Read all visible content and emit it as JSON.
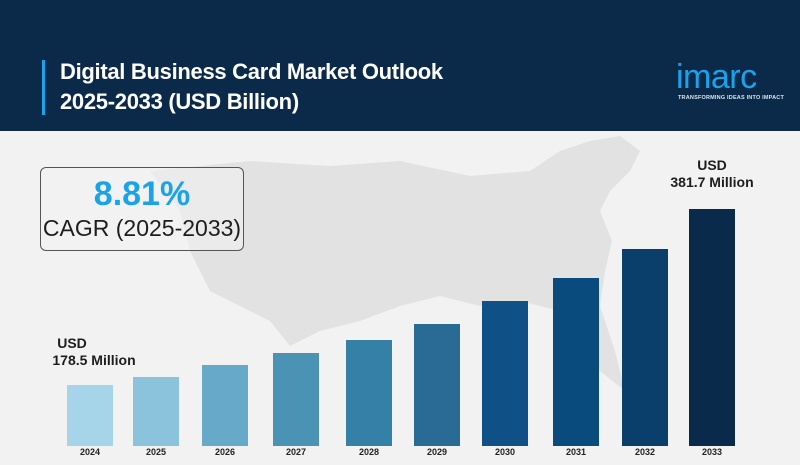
{
  "header": {
    "title_line1": "Digital Business Card Market Outlook",
    "title_line2": "2025-2033 (USD Billion)",
    "logo_word": "imarc",
    "logo_tagline": "TRANSFORMING IDEAS INTO IMPACT",
    "bg_color": "#0b2a4a",
    "accent_color": "#1aa3e8"
  },
  "cagr": {
    "value": "8.81%",
    "label": "CAGR (2025-2033)"
  },
  "annotations": {
    "start_line1": "USD",
    "start_line2": "178.5 Million",
    "end_line1": "USD",
    "end_line2": "381.7 Million"
  },
  "chart_data": {
    "type": "bar",
    "title": "Digital Business Card Market Outlook 2025-2033 (USD Billion)",
    "xlabel": "",
    "ylabel": "",
    "categories": [
      "2024",
      "2025",
      "2026",
      "2027",
      "2028",
      "2029",
      "2030",
      "2031",
      "2032",
      "2033"
    ],
    "values": [
      178.5,
      194.2,
      211.3,
      229.9,
      250.2,
      272.2,
      296.2,
      322.3,
      350.7,
      381.7
    ],
    "units": "USD Million",
    "annotations": [
      {
        "category": "2024",
        "text": "USD 178.5 Million"
      },
      {
        "category": "2033",
        "text": "USD 381.7 Million"
      }
    ],
    "cagr": "8.81% (2025-2033)",
    "grid": false,
    "legend": "none",
    "bar_colors": [
      "#a6d4e8",
      "#8cc3dc",
      "#67a9c9",
      "#4b93b5",
      "#3580a6",
      "#2a6b95",
      "#0f5187",
      "#0a4b7e",
      "#0a3e6b",
      "#0a2a4b"
    ]
  }
}
